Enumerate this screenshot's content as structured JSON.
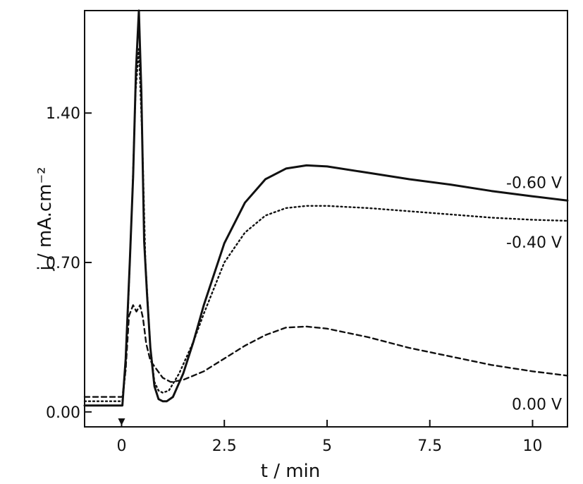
{
  "chart_data": {
    "type": "line",
    "xlabel": "t / min",
    "ylabel": "j / mA.cm⁻²",
    "xlim": [
      -0.9,
      10.85
    ],
    "ylim": [
      -0.07,
      1.88
    ],
    "x_ticks": [
      {
        "value": 0,
        "label": "0"
      },
      {
        "value": 2.5,
        "label": "2.5"
      },
      {
        "value": 5,
        "label": "5"
      },
      {
        "value": 7.5,
        "label": "7.5"
      },
      {
        "value": 10,
        "label": "10"
      }
    ],
    "y_ticks": [
      {
        "value": 0,
        "label": "0.00"
      },
      {
        "value": 0.7,
        "label": "0.70"
      },
      {
        "value": 1.4,
        "label": "1.40"
      }
    ],
    "grid": false,
    "series": [
      {
        "name": "-0.60 V",
        "style": "solid",
        "color": "#111111",
        "points": [
          [
            -0.9,
            0.03
          ],
          [
            -0.1,
            0.03
          ],
          [
            0.02,
            0.03
          ],
          [
            0.1,
            0.25
          ],
          [
            0.2,
            0.7
          ],
          [
            0.28,
            1.1
          ],
          [
            0.35,
            1.6
          ],
          [
            0.42,
            1.88
          ],
          [
            0.48,
            1.5
          ],
          [
            0.55,
            0.8
          ],
          [
            0.62,
            0.55
          ],
          [
            0.7,
            0.3
          ],
          [
            0.8,
            0.12
          ],
          [
            0.9,
            0.06
          ],
          [
            1.0,
            0.05
          ],
          [
            1.1,
            0.05
          ],
          [
            1.25,
            0.07
          ],
          [
            1.5,
            0.18
          ],
          [
            1.75,
            0.33
          ],
          [
            2.0,
            0.5
          ],
          [
            2.5,
            0.79
          ],
          [
            3.0,
            0.98
          ],
          [
            3.5,
            1.09
          ],
          [
            4.0,
            1.14
          ],
          [
            4.5,
            1.155
          ],
          [
            5.0,
            1.15
          ],
          [
            6.0,
            1.12
          ],
          [
            7.0,
            1.09
          ],
          [
            8.0,
            1.065
          ],
          [
            9.0,
            1.035
          ],
          [
            10.0,
            1.01
          ],
          [
            10.85,
            0.99
          ]
        ]
      },
      {
        "name": "-0.40 V",
        "style": "dotted",
        "color": "#111111",
        "points": [
          [
            -0.9,
            0.05
          ],
          [
            -0.1,
            0.05
          ],
          [
            0.02,
            0.05
          ],
          [
            0.1,
            0.2
          ],
          [
            0.18,
            0.6
          ],
          [
            0.26,
            1.0
          ],
          [
            0.34,
            1.5
          ],
          [
            0.42,
            1.7
          ],
          [
            0.5,
            1.3
          ],
          [
            0.58,
            0.7
          ],
          [
            0.7,
            0.3
          ],
          [
            0.8,
            0.14
          ],
          [
            0.9,
            0.1
          ],
          [
            1.0,
            0.09
          ],
          [
            1.15,
            0.1
          ],
          [
            1.4,
            0.18
          ],
          [
            1.75,
            0.33
          ],
          [
            2.0,
            0.46
          ],
          [
            2.5,
            0.7
          ],
          [
            3.0,
            0.84
          ],
          [
            3.5,
            0.92
          ],
          [
            4.0,
            0.955
          ],
          [
            4.5,
            0.965
          ],
          [
            5.0,
            0.965
          ],
          [
            6.0,
            0.955
          ],
          [
            7.0,
            0.94
          ],
          [
            8.0,
            0.925
          ],
          [
            9.0,
            0.91
          ],
          [
            10.0,
            0.9
          ],
          [
            10.85,
            0.895
          ]
        ]
      },
      {
        "name": "0.00 V",
        "style": "dashed",
        "color": "#111111",
        "points": [
          [
            -0.9,
            0.07
          ],
          [
            -0.1,
            0.07
          ],
          [
            0.02,
            0.07
          ],
          [
            0.1,
            0.2
          ],
          [
            0.18,
            0.45
          ],
          [
            0.28,
            0.5
          ],
          [
            0.36,
            0.47
          ],
          [
            0.45,
            0.5
          ],
          [
            0.52,
            0.44
          ],
          [
            0.6,
            0.32
          ],
          [
            0.7,
            0.24
          ],
          [
            0.85,
            0.2
          ],
          [
            1.0,
            0.16
          ],
          [
            1.2,
            0.14
          ],
          [
            1.5,
            0.15
          ],
          [
            2.0,
            0.19
          ],
          [
            2.5,
            0.25
          ],
          [
            3.0,
            0.31
          ],
          [
            3.5,
            0.36
          ],
          [
            4.0,
            0.395
          ],
          [
            4.5,
            0.4
          ],
          [
            5.0,
            0.39
          ],
          [
            6.0,
            0.35
          ],
          [
            7.0,
            0.3
          ],
          [
            8.0,
            0.26
          ],
          [
            9.0,
            0.22
          ],
          [
            10.0,
            0.19
          ],
          [
            10.85,
            0.17
          ]
        ]
      }
    ],
    "series_labels": [
      {
        "text": "-0.60 V",
        "series": 0
      },
      {
        "text": "-0.40 V",
        "series": 1
      },
      {
        "text": "0.00 V",
        "series": 2
      }
    ]
  }
}
